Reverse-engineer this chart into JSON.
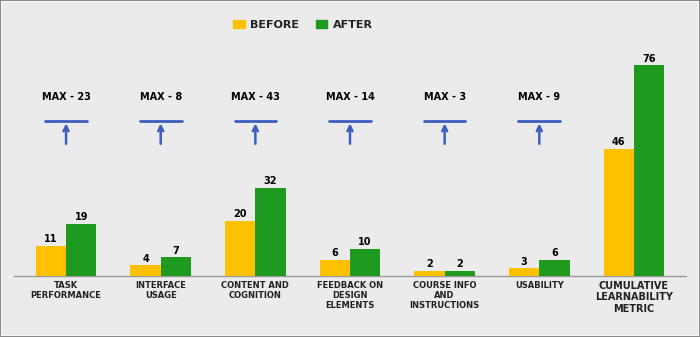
{
  "categories": [
    "TASK\nPERFORMANCE",
    "INTERFACE\nUSAGE",
    "CONTENT AND\nCOGNITION",
    "FEEDBACK ON\nDESIGN\nELEMENTS",
    "COURSE INFO\nAND\nINSTRUCTIONS",
    "USABILITY",
    "CUMULATIVE\nLEARNABILITY\nMETRIC"
  ],
  "before_values": [
    11,
    4,
    20,
    6,
    2,
    3,
    46
  ],
  "after_values": [
    19,
    7,
    32,
    10,
    2,
    6,
    76
  ],
  "max_labels": [
    "MAX - 23",
    "MAX - 8",
    "MAX - 43",
    "MAX - 14",
    "MAX - 3",
    "MAX - 9",
    null
  ],
  "before_color": "#FFC000",
  "after_color": "#1E9B1E",
  "arrow_color": "#3B5EBF",
  "background_color": "#EBEBEB",
  "bar_width": 0.32,
  "ylim": [
    0,
    85
  ],
  "legend_labels": [
    "BEFORE",
    "AFTER"
  ],
  "legend_marker_color_before": "#FFC000",
  "legend_marker_color_after": "#1E9B1E"
}
